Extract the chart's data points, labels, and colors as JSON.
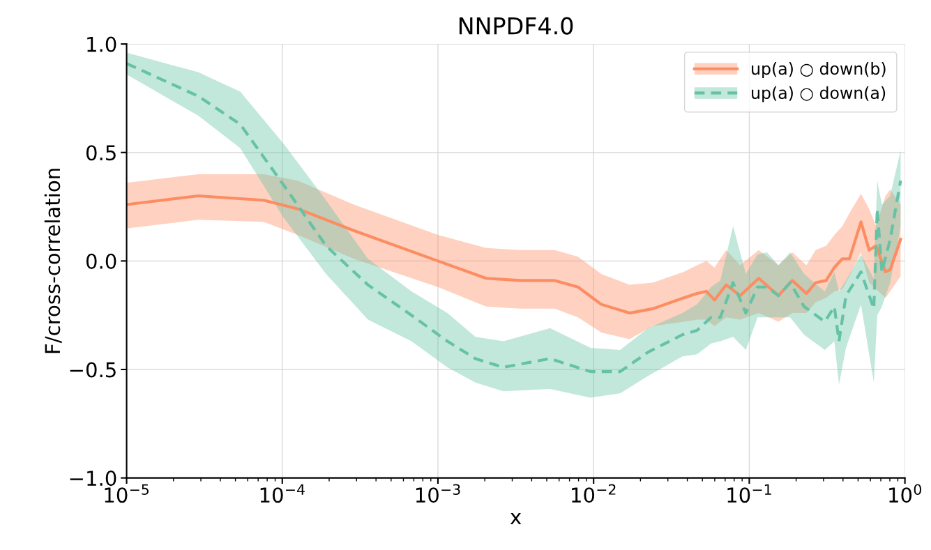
{
  "chart_data": {
    "type": "line",
    "title": "NNPDF4.0",
    "xlabel": "x",
    "ylabel": "F/cross-correlation",
    "log": "x",
    "grid": true,
    "legend": "top right",
    "xlim": [
      1e-05,
      1
    ],
    "ylim": [
      -1,
      1
    ],
    "xticks": [
      {
        "value": 1e-05,
        "label": "10$^{−5}$"
      },
      {
        "value": 0.0001,
        "label": "10$^{−4}$"
      },
      {
        "value": 0.001,
        "label": "10$^{−3}$"
      },
      {
        "value": 0.01,
        "label": "10$^{−2}$"
      },
      {
        "value": 0.1,
        "label": "10$^{−1}$"
      },
      {
        "value": 1,
        "label": "10$^{0}$"
      }
    ],
    "yticks": [
      {
        "value": -1,
        "label": "−1.0"
      },
      {
        "value": -0.5,
        "label": "−0.5"
      },
      {
        "value": 0,
        "label": "0.0"
      },
      {
        "value": 0.5,
        "label": "0.5"
      },
      {
        "value": 1,
        "label": "1.0"
      }
    ],
    "series": [
      {
        "name": "up(a) ○ down(b)",
        "color": "#fc8d62",
        "line_style": "solid",
        "x": [
          1e-05,
          2.88e-05,
          7.59e-05,
          0.000126,
          0.000288,
          0.001,
          0.00204,
          0.00339,
          0.00562,
          0.00794,
          0.0112,
          0.017,
          0.024,
          0.038,
          0.0462,
          0.053,
          0.0598,
          0.0711,
          0.0873,
          0.115,
          0.154,
          0.189,
          0.233,
          0.267,
          0.312,
          0.352,
          0.396,
          0.44,
          0.522,
          0.589,
          0.653,
          0.75,
          0.804,
          0.938
        ],
        "values": [
          0.26,
          0.3,
          0.28,
          0.24,
          0.14,
          0.0,
          -0.08,
          -0.09,
          -0.09,
          -0.12,
          -0.2,
          -0.24,
          -0.22,
          -0.17,
          -0.15,
          -0.14,
          -0.18,
          -0.11,
          -0.16,
          -0.08,
          -0.16,
          -0.09,
          -0.15,
          -0.1,
          -0.09,
          -0.03,
          0.01,
          0.01,
          0.18,
          0.05,
          0.07,
          -0.05,
          -0.04,
          0.1
        ],
        "lower": [
          0.15,
          0.19,
          0.18,
          0.12,
          0.01,
          -0.12,
          -0.21,
          -0.22,
          -0.22,
          -0.26,
          -0.33,
          -0.36,
          -0.3,
          -0.28,
          -0.27,
          -0.27,
          -0.3,
          -0.26,
          -0.27,
          -0.24,
          -0.28,
          -0.24,
          -0.24,
          -0.19,
          -0.17,
          -0.14,
          -0.13,
          -0.07,
          0.04,
          -0.1,
          -0.13,
          -0.17,
          -0.14,
          -0.07
        ],
        "upper": [
          0.36,
          0.4,
          0.4,
          0.37,
          0.26,
          0.12,
          0.06,
          0.05,
          0.05,
          0.02,
          -0.06,
          -0.11,
          -0.1,
          -0.05,
          -0.02,
          0.0,
          -0.03,
          0.05,
          -0.02,
          0.05,
          -0.02,
          0.04,
          -0.02,
          0.05,
          0.07,
          0.12,
          0.16,
          0.22,
          0.31,
          0.24,
          0.16,
          0.3,
          0.33,
          0.26
        ]
      },
      {
        "name": "up(a) ○ down(a)",
        "color": "#66c2a5",
        "line_style": "dashed",
        "x": [
          1e-05,
          2.88e-05,
          5.37e-05,
          0.000102,
          0.000191,
          0.000355,
          0.000676,
          0.00115,
          0.00174,
          0.00263,
          0.00525,
          0.00955,
          0.0148,
          0.0224,
          0.0372,
          0.0462,
          0.0568,
          0.0652,
          0.0787,
          0.0951,
          0.113,
          0.13,
          0.154,
          0.183,
          0.225,
          0.306,
          0.352,
          0.377,
          0.418,
          0.522,
          0.631,
          0.664,
          0.711,
          0.804,
          0.938
        ],
        "values": [
          0.91,
          0.76,
          0.63,
          0.35,
          0.07,
          -0.11,
          -0.25,
          -0.37,
          -0.45,
          -0.49,
          -0.45,
          -0.51,
          -0.51,
          -0.42,
          -0.34,
          -0.32,
          -0.26,
          -0.26,
          -0.1,
          -0.24,
          -0.12,
          -0.12,
          -0.16,
          -0.1,
          -0.21,
          -0.28,
          -0.21,
          -0.37,
          -0.16,
          -0.05,
          -0.22,
          0.24,
          -0.05,
          0.1,
          0.37
        ],
        "lower": [
          0.86,
          0.67,
          0.52,
          0.2,
          -0.06,
          -0.27,
          -0.37,
          -0.49,
          -0.56,
          -0.6,
          -0.59,
          -0.63,
          -0.61,
          -0.53,
          -0.44,
          -0.43,
          -0.38,
          -0.37,
          -0.35,
          -0.41,
          -0.26,
          -0.26,
          -0.26,
          -0.26,
          -0.34,
          -0.41,
          -0.37,
          -0.57,
          -0.4,
          -0.2,
          -0.56,
          -0.25,
          -0.21,
          -0.1,
          0.16
        ],
        "upper": [
          0.96,
          0.87,
          0.78,
          0.54,
          0.28,
          0.01,
          -0.14,
          -0.24,
          -0.35,
          -0.37,
          -0.31,
          -0.4,
          -0.41,
          -0.31,
          -0.24,
          -0.2,
          -0.12,
          -0.09,
          0.16,
          -0.06,
          0.03,
          0.04,
          -0.02,
          0.04,
          -0.06,
          -0.14,
          -0.05,
          -0.14,
          -0.09,
          0.03,
          -0.08,
          0.37,
          0.26,
          0.3,
          0.51
        ]
      }
    ]
  }
}
